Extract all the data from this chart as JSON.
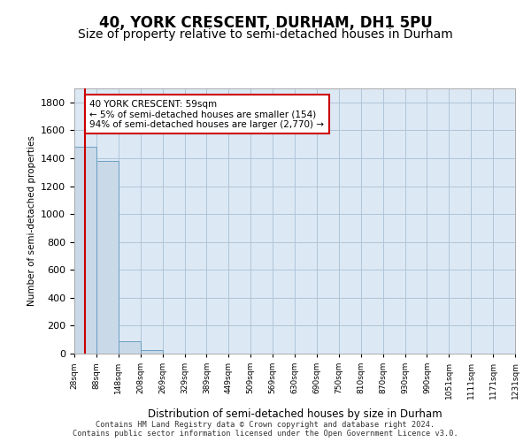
{
  "title": "40, YORK CRESCENT, DURHAM, DH1 5PU",
  "subtitle": "Size of property relative to semi-detached houses in Durham",
  "xlabel": "Distribution of semi-detached houses by size in Durham",
  "ylabel": "Number of semi-detached properties",
  "footer_line1": "Contains HM Land Registry data © Crown copyright and database right 2024.",
  "footer_line2": "Contains public sector information licensed under the Open Government Licence v3.0.",
  "tick_labels": [
    "28sqm",
    "88sqm",
    "148sqm",
    "208sqm",
    "269sqm",
    "329sqm",
    "389sqm",
    "449sqm",
    "509sqm",
    "569sqm",
    "630sqm",
    "690sqm",
    "750sqm",
    "810sqm",
    "870sqm",
    "930sqm",
    "990sqm",
    "1051sqm",
    "1111sqm",
    "1171sqm",
    "1231sqm"
  ],
  "bar_values": [
    1480,
    1380,
    90,
    25,
    2,
    1,
    0,
    0,
    0,
    0,
    0,
    0,
    0,
    0,
    0,
    0,
    0,
    0,
    0,
    0
  ],
  "bar_color": "#c9d9e8",
  "bar_edge_color": "#6b9dc0",
  "property_line_x": 0.5,
  "property_line_color": "#cc0000",
  "annotation_text_line1": "40 YORK CRESCENT: 59sqm",
  "annotation_text_line2": "← 5% of semi-detached houses are smaller (154)",
  "annotation_text_line3": "94% of semi-detached houses are larger (2,770) →",
  "annotation_box_edge_color": "#cc0000",
  "ylim": [
    0,
    1900
  ],
  "yticks": [
    0,
    200,
    400,
    600,
    800,
    1000,
    1200,
    1400,
    1600,
    1800
  ],
  "grid_color": "#b0c4d8",
  "background_color": "#dce9f5",
  "title_fontsize": 12,
  "subtitle_fontsize": 10
}
